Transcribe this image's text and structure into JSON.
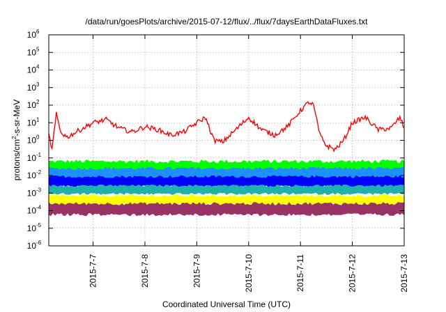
{
  "chart_data": {
    "type": "line",
    "title": "/data/run/goesPlots/archive/2015-07-12/flux/../flux/7daysEarthDataFluxes.txt",
    "xlabel": "Coordinated Universal Time (UTC)",
    "ylabel": {
      "base": "protons/cm",
      "sup": "2",
      "rest": "-s-sr-MeV"
    },
    "yscale": "log",
    "ylim_exponents": [
      -6,
      6
    ],
    "y_ticks": [
      {
        "base": "10",
        "exp": "-6"
      },
      {
        "base": "10",
        "exp": "-5"
      },
      {
        "base": "10",
        "exp": "-4"
      },
      {
        "base": "10",
        "exp": "-3"
      },
      {
        "base": "10",
        "exp": "-2"
      },
      {
        "base": "10",
        "exp": "-1"
      },
      {
        "base": "10",
        "exp": "0"
      },
      {
        "base": "10",
        "exp": "1"
      },
      {
        "base": "10",
        "exp": "2"
      },
      {
        "base": "10",
        "exp": "3"
      },
      {
        "base": "10",
        "exp": "4"
      },
      {
        "base": "10",
        "exp": "5"
      },
      {
        "base": "10",
        "exp": "6"
      }
    ],
    "xlim": [
      "2015-07-06T03:30",
      "2015-07-13T00:00"
    ],
    "x_ticks": [
      {
        "label": "2015-7-7",
        "date": "2015-07-07"
      },
      {
        "label": "2015-7-8",
        "date": "2015-07-08"
      },
      {
        "label": "2015-7-9",
        "date": "2015-07-09"
      },
      {
        "label": "2015-7-10",
        "date": "2015-07-10"
      },
      {
        "label": "2015-7-11",
        "date": "2015-07-11"
      },
      {
        "label": "2015-7-12",
        "date": "2015-07-12"
      },
      {
        "label": "2015-7-13",
        "date": "2015-07-13"
      }
    ],
    "grid": "dotted",
    "series": [
      {
        "color": "#ff0000",
        "x": [
          "2015-07-06T03:30",
          "2015-07-06T05:00",
          "2015-07-06T07:00",
          "2015-07-06T09:00",
          "2015-07-06T12:00",
          "2015-07-06T18:00",
          "2015-07-07T00:00",
          "2015-07-07T06:00",
          "2015-07-07T12:00",
          "2015-07-07T18:00",
          "2015-07-08T00:00",
          "2015-07-08T06:00",
          "2015-07-08T12:00",
          "2015-07-08T18:00",
          "2015-07-09T00:00",
          "2015-07-09T04:00",
          "2015-07-09T08:00",
          "2015-07-09T12:00",
          "2015-07-09T18:00",
          "2015-07-10T00:00",
          "2015-07-10T06:00",
          "2015-07-10T12:00",
          "2015-07-10T18:00",
          "2015-07-11T00:00",
          "2015-07-11T04:00",
          "2015-07-11T06:00",
          "2015-07-11T09:00",
          "2015-07-11T12:00",
          "2015-07-11T16:00",
          "2015-07-11T20:00",
          "2015-07-12T00:00",
          "2015-07-12T06:00",
          "2015-07-12T12:00",
          "2015-07-12T18:00",
          "2015-07-12T22:00",
          "2015-07-13T00:00"
        ],
        "y": [
          2.0,
          0.3,
          30,
          3,
          1.5,
          4,
          10,
          15,
          5,
          3,
          6,
          4,
          2,
          3,
          10,
          20,
          1,
          0.8,
          4,
          20,
          4,
          2,
          6,
          50,
          150,
          100,
          2,
          0.5,
          0.3,
          1,
          10,
          20,
          4,
          5,
          20,
          5
        ]
      },
      {
        "color": "#00ff00",
        "band": [
          0.008,
          0.08
        ]
      },
      {
        "color": "#1e90ff",
        "band": [
          0.005,
          0.03
        ]
      },
      {
        "color": "#0000ff",
        "band": [
          0.002,
          0.01
        ]
      },
      {
        "color": "#20b2aa",
        "band": [
          0.0008,
          0.003
        ]
      },
      {
        "color": "#ffff00",
        "band": [
          0.0002,
          0.0008
        ]
      },
      {
        "color": "#993366",
        "band": [
          5e-05,
          0.0003
        ]
      }
    ]
  }
}
